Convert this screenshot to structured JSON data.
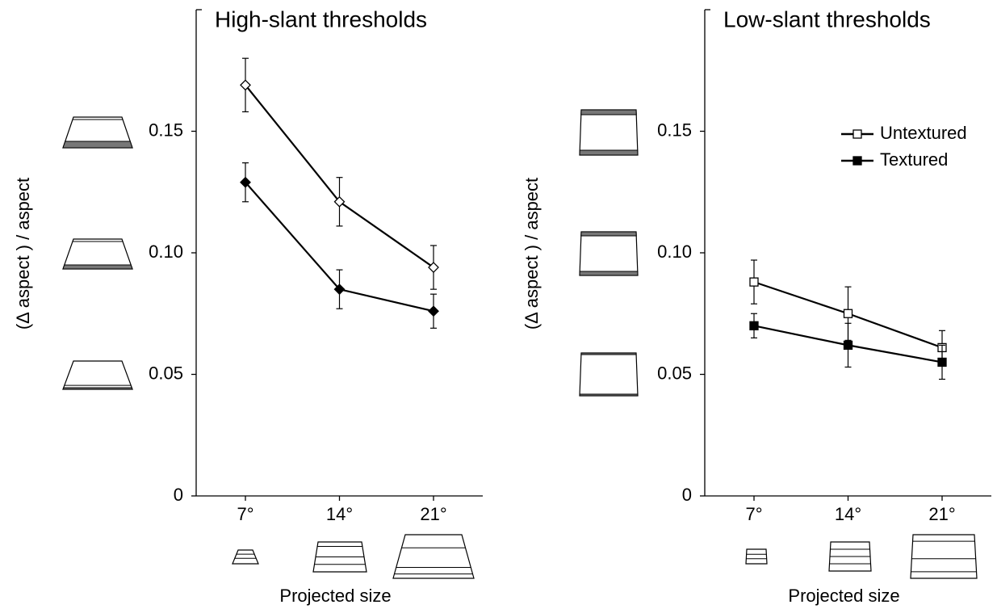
{
  "chart_data": [
    {
      "type": "line",
      "title": "High-slant thresholds",
      "ylabel": "(Δ aspect ) / aspect",
      "xlabel": "Projected size",
      "categories": [
        "7°",
        "14°",
        "21°"
      ],
      "series": [
        {
          "color": "#000000",
          "marker": "diamond",
          "facecolor": "#ffffff",
          "values": [
            0.169,
            0.121,
            0.094
          ],
          "errors": [
            0.011,
            0.01,
            0.009
          ]
        },
        {
          "color": "#000000",
          "marker": "diamond",
          "facecolor": "#000000",
          "values": [
            0.129,
            0.085,
            0.076
          ],
          "errors": [
            0.008,
            0.008,
            0.007
          ]
        }
      ],
      "ylim": [
        0,
        0.2
      ],
      "yticks": [
        0,
        0.05,
        {
          "value": 0.1,
          "label": "0.10"
        },
        0.15
      ]
    },
    {
      "type": "line",
      "title": "Low-slant thresholds",
      "ylabel": "(Δ aspect ) / aspect",
      "xlabel": "Projected size",
      "categories": [
        "7°",
        "14°",
        "21°"
      ],
      "series": [
        {
          "name": "Untextured",
          "color": "#000000",
          "marker": "square",
          "facecolor": "#ffffff",
          "values": [
            0.088,
            0.075,
            0.061
          ],
          "errors": [
            0.009,
            0.011,
            0.007
          ]
        },
        {
          "name": "Textured",
          "color": "#000000",
          "marker": "square",
          "facecolor": "#000000",
          "values": [
            0.07,
            0.062,
            0.055
          ],
          "errors": [
            0.005,
            0.009,
            0.007
          ]
        }
      ],
      "ylim": [
        0,
        0.2
      ],
      "yticks": [
        0,
        0.05,
        {
          "value": 0.1,
          "label": "0.10"
        },
        0.15
      ],
      "legend": "upper right"
    }
  ]
}
